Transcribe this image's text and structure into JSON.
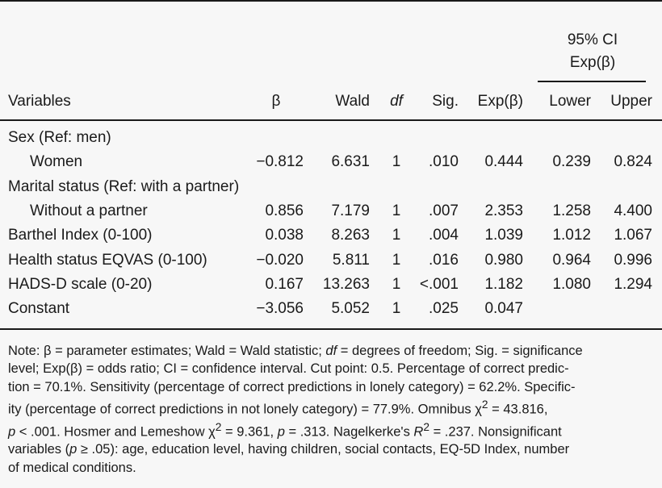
{
  "table": {
    "ci_header_line1": "95% CI",
    "ci_header_line2": "Exp(β)",
    "columns": [
      "Variables",
      "β",
      "Wald",
      "df",
      "Sig.",
      "Exp(β)",
      "Lower",
      "Upper"
    ],
    "rows": [
      {
        "label": "Sex (Ref: men)",
        "indent": false,
        "values": [
          "",
          "",
          "",
          "",
          "",
          "",
          ""
        ]
      },
      {
        "label": "Women",
        "indent": true,
        "values": [
          "−0.812",
          "6.631",
          "1",
          ".010",
          "0.444",
          "0.239",
          "0.824"
        ]
      },
      {
        "label": "Marital status (Ref: with a partner)",
        "indent": false,
        "values": [
          "",
          "",
          "",
          "",
          "",
          "",
          ""
        ]
      },
      {
        "label": "Without a partner",
        "indent": true,
        "values": [
          "0.856",
          "7.179",
          "1",
          ".007",
          "2.353",
          "1.258",
          "4.400"
        ]
      },
      {
        "label": "Barthel Index (0-100)",
        "indent": false,
        "values": [
          "0.038",
          "8.263",
          "1",
          ".004",
          "1.039",
          "1.012",
          "1.067"
        ]
      },
      {
        "label": "Health status EQVAS (0-100)",
        "indent": false,
        "values": [
          "−0.020",
          "5.811",
          "1",
          ".016",
          "0.980",
          "0.964",
          "0.996"
        ]
      },
      {
        "label": "HADS-D scale (0-20)",
        "indent": false,
        "values": [
          "0.167",
          "13.263",
          "1",
          "<.001",
          "1.182",
          "1.080",
          "1.294"
        ]
      },
      {
        "label": "Constant",
        "indent": false,
        "values": [
          "−3.056",
          "5.052",
          "1",
          ".025",
          "0.047",
          "",
          ""
        ]
      }
    ]
  },
  "note": {
    "lines": [
      "Note: β = parameter estimates; Wald = Wald statistic; df = degrees of freedom; Sig. = significance",
      "level; Exp(β) = odds ratio; CI = confidence interval. Cut point: 0.5. Percentage of correct predic-",
      "tion = 70.1%. Sensitivity (percentage of correct predictions in lonely category) = 62.2%. Specific-",
      "ity (percentage of correct predictions in not lonely category) = 77.9%. Omnibus χ² = 43.816,",
      "p < .001. Hosmer and Lemeshow χ² = 9.361, p = .313. Nagelkerke's R² = .237. Nonsignificant",
      "variables (p ≥ .05): age, education level, having children, social contacts, EQ-5D Index, number",
      "of medical conditions."
    ]
  }
}
